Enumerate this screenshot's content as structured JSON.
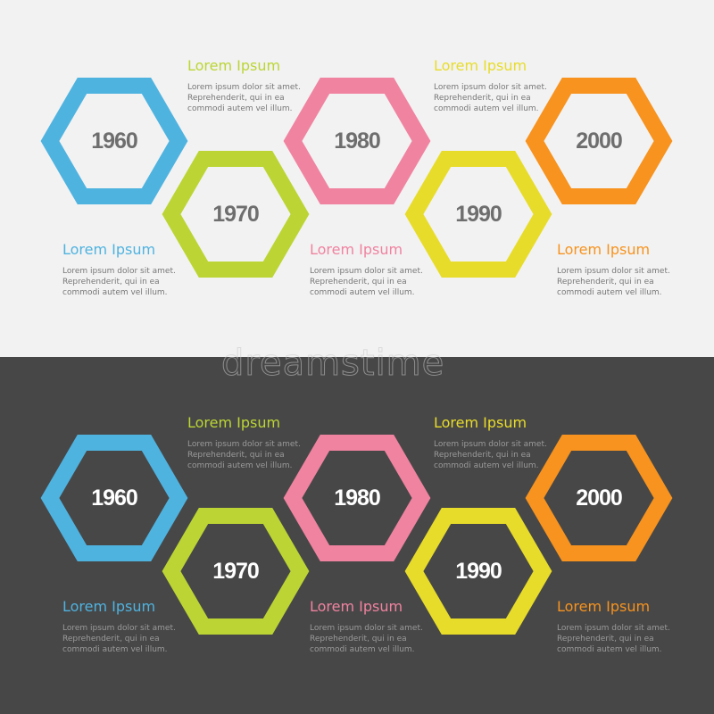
{
  "colors": {
    "light_background": "#f2f2f2",
    "dark_background": "#474747"
  },
  "timeline": [
    {
      "year": "1960",
      "color": "#4fb3e0",
      "heading": "Lorem Ipsum",
      "lines": [
        "Lorem ipsum dolor sit amet.",
        "Reprehenderit, qui in ea",
        "commodi autem vel illum."
      ],
      "text_position": "below"
    },
    {
      "year": "1970",
      "color": "#bcd534",
      "heading": "Lorem Ipsum",
      "lines": [
        "Lorem ipsum dolor sit amet.",
        "Reprehenderit, qui in ea",
        "commodi autem vel illum."
      ],
      "text_position": "above"
    },
    {
      "year": "1980",
      "color": "#f083a0",
      "heading": "Lorem Ipsum",
      "lines": [
        "Lorem ipsum dolor sit amet.",
        "Reprehenderit, qui in ea",
        "commodi autem vel illum."
      ],
      "text_position": "below"
    },
    {
      "year": "1990",
      "color": "#e8dc2a",
      "heading": "Lorem Ipsum",
      "lines": [
        "Lorem ipsum dolor sit amet.",
        "Reprehenderit, qui in ea",
        "commodi autem vel illum."
      ],
      "text_position": "above"
    },
    {
      "year": "2000",
      "color": "#f7931e",
      "heading": "Lorem Ipsum",
      "lines": [
        "Lorem ipsum dolor sit amet.",
        "Reprehenderit, qui in ea",
        "commodi autem vel illum."
      ],
      "text_position": "below"
    }
  ],
  "watermark": "dreamstime"
}
